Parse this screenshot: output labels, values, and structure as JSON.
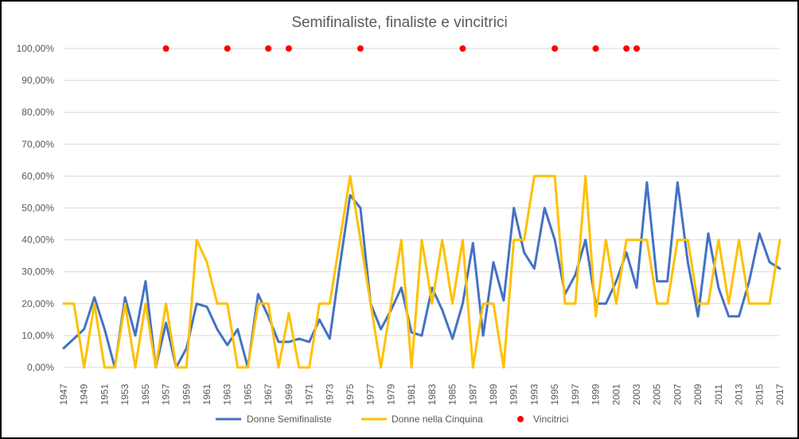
{
  "chart_data": {
    "type": "line",
    "title": "Semifinaliste, finaliste e vincitrici",
    "xlabel": "",
    "ylabel": "",
    "ylim": [
      0,
      100
    ],
    "y_ticks": [
      "0,00%",
      "10,00%",
      "20,00%",
      "30,00%",
      "40,00%",
      "50,00%",
      "60,00%",
      "70,00%",
      "80,00%",
      "90,00%",
      "100,00%"
    ],
    "x": [
      1947,
      1948,
      1949,
      1950,
      1951,
      1952,
      1953,
      1954,
      1955,
      1956,
      1957,
      1958,
      1959,
      1960,
      1961,
      1962,
      1963,
      1964,
      1965,
      1966,
      1967,
      1968,
      1969,
      1970,
      1971,
      1972,
      1973,
      1974,
      1975,
      1976,
      1977,
      1978,
      1979,
      1980,
      1981,
      1982,
      1983,
      1984,
      1985,
      1986,
      1987,
      1988,
      1989,
      1990,
      1991,
      1992,
      1993,
      1994,
      1995,
      1996,
      1997,
      1998,
      1999,
      2000,
      2001,
      2002,
      2003,
      2004,
      2005,
      2006,
      2007,
      2008,
      2009,
      2010,
      2011,
      2012,
      2013,
      2014,
      2015,
      2016,
      2017
    ],
    "x_tick_labels": [
      "1947",
      "1949",
      "1951",
      "1953",
      "1955",
      "1957",
      "1959",
      "1961",
      "1963",
      "1965",
      "1967",
      "1969",
      "1971",
      "1973",
      "1975",
      "1977",
      "1979",
      "1981",
      "1983",
      "1985",
      "1987",
      "1989",
      "1991",
      "1993",
      "1995",
      "1997",
      "1999",
      "2001",
      "2003",
      "2005",
      "2007",
      "2009",
      "2011",
      "2013",
      "2015",
      "2017"
    ],
    "grid": true,
    "legend_position": "bottom",
    "series": [
      {
        "name": "Donne Semifinaliste",
        "color": "#4472C4",
        "values": [
          6,
          9,
          12,
          22,
          12,
          0,
          22,
          10,
          27,
          0,
          14,
          0,
          6,
          20,
          19,
          12,
          7,
          12,
          0,
          23,
          16,
          8,
          8,
          9,
          8,
          15,
          9,
          32,
          54,
          50,
          20,
          12,
          18,
          25,
          11,
          10,
          25,
          18,
          9,
          20,
          39,
          10,
          33,
          21,
          50,
          36,
          31,
          50,
          40,
          23,
          29,
          40,
          20,
          20,
          27,
          36,
          25,
          58,
          27,
          27,
          58,
          33,
          16,
          42,
          25,
          16,
          16,
          27,
          42,
          33,
          31
        ]
      },
      {
        "name": "Donne nella Cinquina",
        "color": "#FFC000",
        "values": [
          20,
          20,
          0,
          20,
          0,
          0,
          20,
          0,
          20,
          0,
          20,
          0,
          0,
          40,
          33,
          20,
          20,
          0,
          0,
          20,
          20,
          0,
          17,
          0,
          0,
          20,
          20,
          40,
          60,
          40,
          20,
          0,
          20,
          40,
          0,
          40,
          20,
          40,
          20,
          40,
          0,
          20,
          20,
          0,
          40,
          40,
          60,
          60,
          60,
          20,
          20,
          60,
          16,
          40,
          20,
          40,
          40,
          40,
          20,
          20,
          40,
          40,
          20,
          20,
          40,
          20,
          40,
          20,
          20,
          20,
          40
        ]
      },
      {
        "name": "Vincitrici",
        "color": "#FF0000",
        "type": "scatter",
        "points": [
          {
            "x": 1957,
            "y": 100
          },
          {
            "x": 1963,
            "y": 100
          },
          {
            "x": 1967,
            "y": 100
          },
          {
            "x": 1969,
            "y": 100
          },
          {
            "x": 1976,
            "y": 100
          },
          {
            "x": 1986,
            "y": 100
          },
          {
            "x": 1995,
            "y": 100
          },
          {
            "x": 1999,
            "y": 100
          },
          {
            "x": 2002,
            "y": 100
          },
          {
            "x": 2003,
            "y": 100
          }
        ]
      }
    ]
  }
}
